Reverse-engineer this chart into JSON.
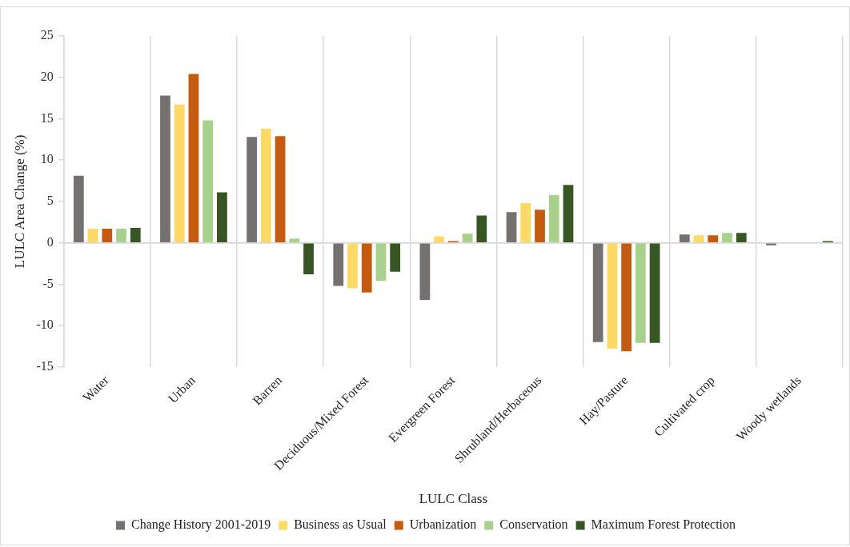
{
  "chart_data": {
    "type": "bar",
    "xlabel": "LULC Class",
    "ylabel": "LULC Area Change (%)",
    "categories": [
      "Water",
      "Urban",
      "Barren",
      "Deciduous/Mixed Forest",
      "Evergreen Forest",
      "Shrubland/Herbaceous",
      "Hay/Pasture",
      "Cultivated crop",
      "Woody wetlands"
    ],
    "series": [
      {
        "name": "Change History 2001-2019",
        "color": "#767171",
        "values": [
          8.1,
          17.8,
          12.8,
          -5.2,
          -6.9,
          3.7,
          -12.0,
          1.0,
          -0.3
        ]
      },
      {
        "name": "Business as Usual",
        "color": "#ffd966",
        "values": [
          1.7,
          16.7,
          13.8,
          -5.5,
          0.8,
          4.8,
          -12.8,
          0.9,
          null
        ]
      },
      {
        "name": "Urbanization",
        "color": "#c55a11",
        "values": [
          1.7,
          20.4,
          12.9,
          -6.0,
          0.2,
          4.0,
          -13.1,
          0.9,
          null
        ]
      },
      {
        "name": "Conservation",
        "color": "#a9d18e",
        "values": [
          1.7,
          14.8,
          0.5,
          -4.6,
          1.1,
          5.8,
          -12.1,
          1.2,
          null
        ]
      },
      {
        "name": "Maximum Forest Protection",
        "color": "#375623",
        "values": [
          1.8,
          6.1,
          -3.8,
          -3.5,
          3.3,
          7.0,
          -12.1,
          1.2,
          0.2
        ]
      }
    ],
    "ylim": [
      -15,
      25
    ],
    "yticks": [
      -15,
      -10,
      -5,
      0,
      5,
      10,
      15,
      20,
      25
    ],
    "grid": "x",
    "legend": "bottom"
  }
}
